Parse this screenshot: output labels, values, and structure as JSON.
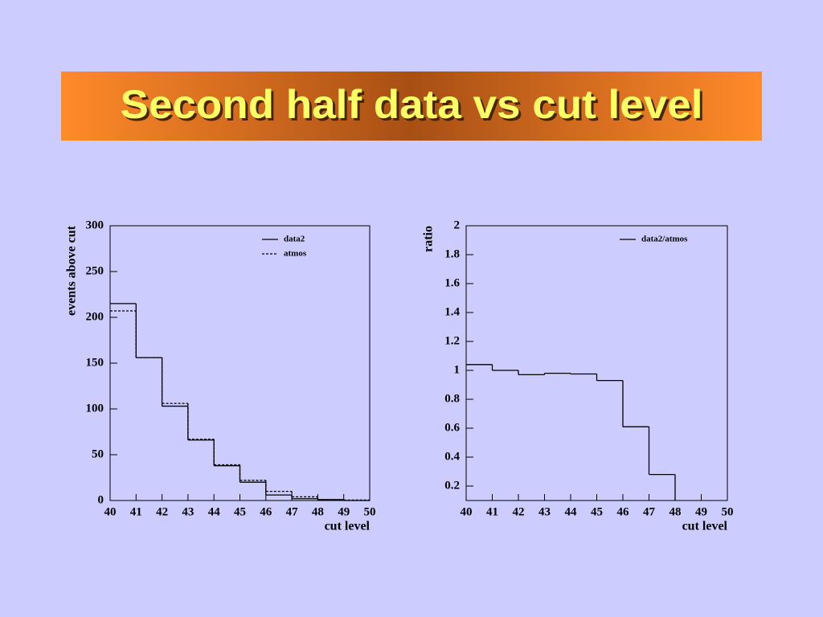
{
  "title": "Second half data vs cut level",
  "chart_data": [
    {
      "type": "histogram",
      "xlabel": "cut level",
      "ylabel": "events above cut",
      "bins": [
        40,
        41,
        42,
        43,
        44,
        45,
        46,
        47,
        48,
        49,
        50
      ],
      "xlim": [
        40,
        50
      ],
      "xticks": [
        40,
        41,
        42,
        43,
        44,
        45,
        46,
        47,
        48,
        49,
        50
      ],
      "ylim": [
        0,
        300
      ],
      "yticks": [
        0,
        50,
        100,
        150,
        200,
        250,
        300
      ],
      "legend": "upper right",
      "series": [
        {
          "name": "data2",
          "color": "#000000",
          "style": "solid",
          "values": [
            215,
            156,
            103,
            66,
            38,
            20,
            6,
            2,
            1,
            0
          ]
        },
        {
          "name": "atmos",
          "color": "#000000",
          "style": "dashed",
          "values": [
            207,
            156,
            106,
            67,
            39,
            22,
            10,
            4,
            1,
            0.5
          ]
        }
      ]
    },
    {
      "type": "histogram",
      "xlabel": "cut level",
      "ylabel": "ratio",
      "bins": [
        40,
        41,
        42,
        43,
        44,
        45,
        46,
        47,
        48,
        49,
        50
      ],
      "xlim": [
        40,
        50
      ],
      "xticks": [
        40,
        41,
        42,
        43,
        44,
        45,
        46,
        47,
        48,
        49,
        50
      ],
      "ylim": [
        0.1,
        2
      ],
      "yticks": [
        0.2,
        0.4,
        0.6,
        0.8,
        1,
        1.2,
        1.4,
        1.6,
        1.8,
        2
      ],
      "legend": "upper right",
      "series": [
        {
          "name": "data2/atmos",
          "color": "#000000",
          "style": "solid",
          "values": [
            1.04,
            1.0,
            0.97,
            0.98,
            0.975,
            0.93,
            0.61,
            0.28,
            null,
            null
          ]
        }
      ]
    }
  ]
}
